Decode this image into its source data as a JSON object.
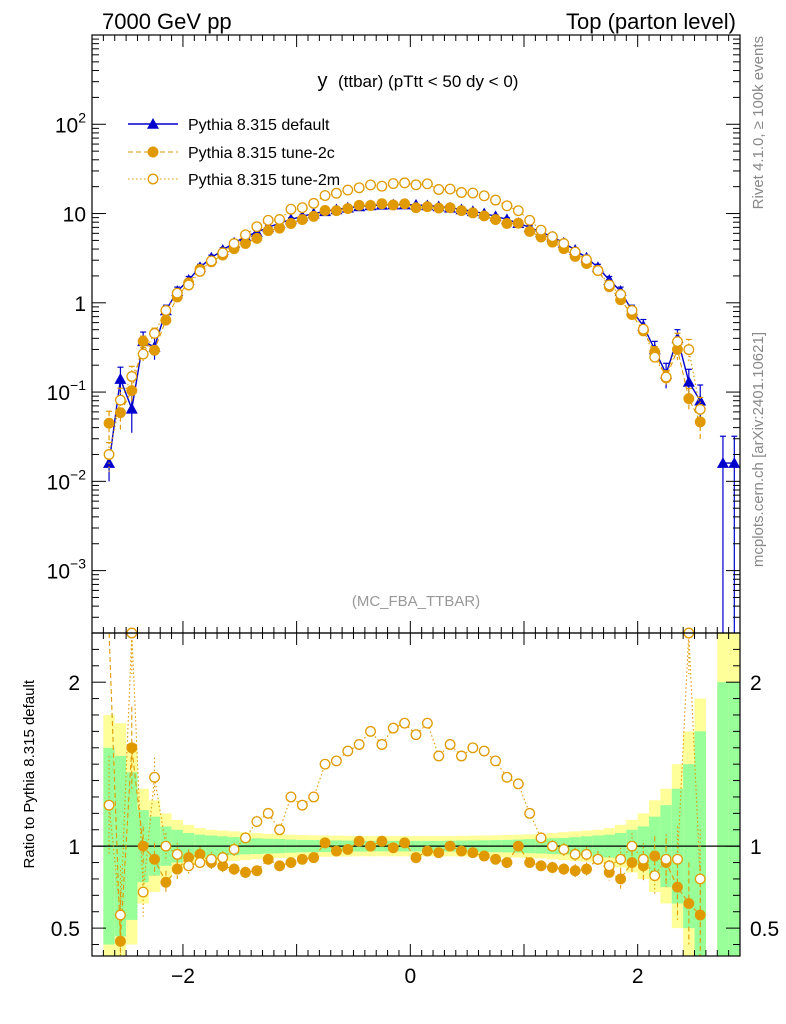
{
  "header": {
    "left": "7000 GeV pp",
    "right": "Top (parton level)"
  },
  "side": {
    "rivet": "Rivet 4.1.0, ≥ 100k events",
    "mcplots": "mcplots.cern.ch [arXiv:2401.10621]"
  },
  "chart_data": {
    "type": "line",
    "title_main": "y",
    "title_detail": "(ttbar) (pTtt < 50 dy < 0)",
    "analysis_label": "(MC_FBA_TTBAR)",
    "xlabel": "",
    "upper_ylabel": "",
    "ratio_ylabel": "Ratio to Pythia 8.315 default",
    "xlim": [
      -2.8,
      2.9
    ],
    "ylim_upper": [
      0.0002,
      1000
    ],
    "ylim_ratio": [
      0.33,
      2.3
    ],
    "x_ticks": [
      -2,
      0,
      2
    ],
    "y_ticks_upper": [
      {
        "value": 0.001,
        "base": "10",
        "exp": "−3"
      },
      {
        "value": 0.01,
        "base": "10",
        "exp": "−2"
      },
      {
        "value": 0.1,
        "base": "10",
        "exp": "−1"
      },
      {
        "value": 1,
        "base": "1",
        "exp": ""
      },
      {
        "value": 10,
        "base": "10",
        "exp": ""
      },
      {
        "value": 100,
        "base": "10",
        "exp": "2"
      }
    ],
    "y_ticks_ratio": [
      {
        "value": 0.5,
        "label": "0.5"
      },
      {
        "value": 1,
        "label": "1"
      },
      {
        "value": 2,
        "label": "2"
      }
    ],
    "legend": {
      "position": "top-left"
    },
    "x": [
      -2.65,
      -2.55,
      -2.45,
      -2.35,
      -2.25,
      -2.15,
      -2.05,
      -1.95,
      -1.85,
      -1.75,
      -1.65,
      -1.55,
      -1.45,
      -1.35,
      -1.25,
      -1.15,
      -1.05,
      -0.95,
      -0.85,
      -0.75,
      -0.65,
      -0.55,
      -0.45,
      -0.35,
      -0.25,
      -0.15,
      -0.05,
      0.05,
      0.15,
      0.25,
      0.35,
      0.45,
      0.55,
      0.65,
      0.75,
      0.85,
      0.95,
      1.05,
      1.15,
      1.25,
      1.35,
      1.45,
      1.55,
      1.65,
      1.75,
      1.85,
      1.95,
      2.05,
      2.15,
      2.25,
      2.35,
      2.45,
      2.55,
      2.65,
      2.75,
      2.85
    ],
    "series": [
      {
        "name": "Pythia 8.315 default",
        "color": "#0000cc",
        "marker": "triangle",
        "line": "solid",
        "values": [
          0.016,
          0.14,
          0.065,
          0.37,
          0.32,
          0.82,
          1.35,
          1.8,
          2.5,
          3.2,
          3.9,
          4.7,
          5.5,
          6.2,
          7.0,
          7.8,
          8.6,
          9.3,
          10.0,
          10.6,
          11.1,
          11.6,
          12.0,
          12.3,
          12.5,
          12.6,
          12.6,
          12.5,
          12.3,
          12.0,
          11.6,
          11.1,
          10.6,
          10.0,
          9.3,
          8.6,
          7.8,
          7.0,
          6.2,
          5.5,
          4.7,
          3.9,
          3.2,
          2.5,
          1.8,
          1.35,
          0.82,
          0.55,
          0.3,
          0.16,
          0.4,
          0.13,
          0.08,
          null,
          0.016,
          0.016
        ],
        "errors": [
          0.006,
          0.05,
          0.03,
          0.1,
          0.09,
          0.12,
          0.15,
          0.17,
          0.2,
          0.22,
          0.24,
          0.26,
          0.28,
          0.3,
          0.32,
          0.34,
          0.35,
          0.37,
          0.38,
          0.4,
          0.41,
          0.42,
          0.43,
          0.44,
          0.44,
          0.45,
          0.45,
          0.44,
          0.44,
          0.43,
          0.42,
          0.41,
          0.4,
          0.38,
          0.37,
          0.35,
          0.34,
          0.32,
          0.3,
          0.28,
          0.26,
          0.24,
          0.22,
          0.2,
          0.17,
          0.15,
          0.12,
          0.1,
          0.07,
          0.05,
          0.1,
          0.05,
          0.04,
          null,
          0.016,
          0.016
        ]
      },
      {
        "name": "Pythia 8.315 tune-2c",
        "color": "#e09a00",
        "marker": "circle-filled",
        "line": "dashed",
        "ratio": [
          2.8,
          0.42,
          1.6,
          1.0,
          0.92,
          0.78,
          0.86,
          0.93,
          0.95,
          0.9,
          0.88,
          0.86,
          0.84,
          0.85,
          0.92,
          0.88,
          0.9,
          0.92,
          0.93,
          1.02,
          0.97,
          0.98,
          1.03,
          1.0,
          1.03,
          0.99,
          1.02,
          0.93,
          0.97,
          0.96,
          1.0,
          0.97,
          0.96,
          0.94,
          0.92,
          0.9,
          1.0,
          0.9,
          0.88,
          0.87,
          0.86,
          0.85,
          0.86,
          0.92,
          0.84,
          0.8,
          0.9,
          0.88,
          0.94,
          0.9,
          0.75,
          0.65,
          0.58,
          null,
          null,
          null
        ],
        "ratio_errors": [
          0.3,
          0.3,
          0.25,
          0.12,
          0.1,
          0.07,
          0.06,
          0.05,
          0.045,
          0.04,
          0.04,
          0.035,
          0.035,
          0.03,
          0.03,
          0.03,
          0.03,
          0.03,
          0.03,
          0.03,
          0.03,
          0.03,
          0.03,
          0.03,
          0.03,
          0.03,
          0.03,
          0.03,
          0.03,
          0.03,
          0.03,
          0.03,
          0.03,
          0.03,
          0.03,
          0.03,
          0.03,
          0.03,
          0.03,
          0.035,
          0.035,
          0.04,
          0.04,
          0.045,
          0.05,
          0.06,
          0.07,
          0.09,
          0.12,
          0.15,
          0.2,
          0.25,
          0.3,
          null,
          null,
          null
        ]
      },
      {
        "name": "Pythia 8.315 tune-2m",
        "color": "#e09a00",
        "marker": "circle-open",
        "line": "dotted",
        "ratio": [
          1.25,
          0.58,
          2.3,
          0.72,
          1.42,
          1.0,
          0.95,
          0.88,
          0.9,
          0.92,
          0.93,
          0.98,
          1.05,
          1.15,
          1.2,
          1.1,
          1.3,
          1.25,
          1.3,
          1.5,
          1.52,
          1.58,
          1.62,
          1.7,
          1.62,
          1.72,
          1.75,
          1.68,
          1.75,
          1.55,
          1.62,
          1.55,
          1.6,
          1.58,
          1.52,
          1.42,
          1.38,
          1.2,
          1.05,
          1.0,
          0.98,
          0.95,
          0.95,
          0.92,
          0.88,
          0.92,
          1.0,
          0.92,
          0.82,
          0.92,
          0.92,
          2.3,
          0.8,
          null,
          null,
          null
        ],
        "ratio_errors": [
          0.3,
          0.3,
          0.25,
          0.15,
          0.12,
          0.08,
          0.07,
          0.06,
          0.05,
          0.045,
          0.04,
          0.04,
          0.035,
          0.035,
          0.03,
          0.03,
          0.03,
          0.03,
          0.03,
          0.03,
          0.03,
          0.03,
          0.03,
          0.03,
          0.03,
          0.03,
          0.03,
          0.03,
          0.03,
          0.03,
          0.03,
          0.03,
          0.03,
          0.03,
          0.03,
          0.03,
          0.03,
          0.03,
          0.035,
          0.035,
          0.04,
          0.04,
          0.045,
          0.05,
          0.06,
          0.07,
          0.08,
          0.1,
          0.12,
          0.15,
          0.2,
          0.25,
          0.3,
          null,
          null,
          null
        ]
      }
    ],
    "uncertainty_band": {
      "inner_color": "#99ff99",
      "outer_color": "#ffff99",
      "inner": [
        0.6,
        0.55,
        0.45,
        0.22,
        0.18,
        0.12,
        0.1,
        0.08,
        0.07,
        0.065,
        0.06,
        0.055,
        0.05,
        0.048,
        0.045,
        0.043,
        0.04,
        0.038,
        0.037,
        0.036,
        0.035,
        0.034,
        0.033,
        0.032,
        0.032,
        0.032,
        0.032,
        0.032,
        0.032,
        0.032,
        0.033,
        0.034,
        0.035,
        0.036,
        0.037,
        0.038,
        0.04,
        0.043,
        0.045,
        0.048,
        0.05,
        0.055,
        0.06,
        0.065,
        0.07,
        0.08,
        0.1,
        0.12,
        0.18,
        0.25,
        0.35,
        0.5,
        0.7,
        null,
        1.0,
        1.0
      ],
      "outer": [
        0.8,
        0.75,
        0.6,
        0.35,
        0.28,
        0.2,
        0.16,
        0.13,
        0.11,
        0.1,
        0.095,
        0.09,
        0.085,
        0.08,
        0.075,
        0.072,
        0.07,
        0.068,
        0.066,
        0.065,
        0.064,
        0.063,
        0.062,
        0.062,
        0.062,
        0.062,
        0.062,
        0.062,
        0.062,
        0.062,
        0.062,
        0.063,
        0.064,
        0.065,
        0.066,
        0.068,
        0.07,
        0.072,
        0.075,
        0.08,
        0.085,
        0.09,
        0.095,
        0.1,
        0.11,
        0.13,
        0.16,
        0.2,
        0.28,
        0.35,
        0.5,
        0.7,
        0.9,
        null,
        1.5,
        1.5
      ]
    }
  }
}
